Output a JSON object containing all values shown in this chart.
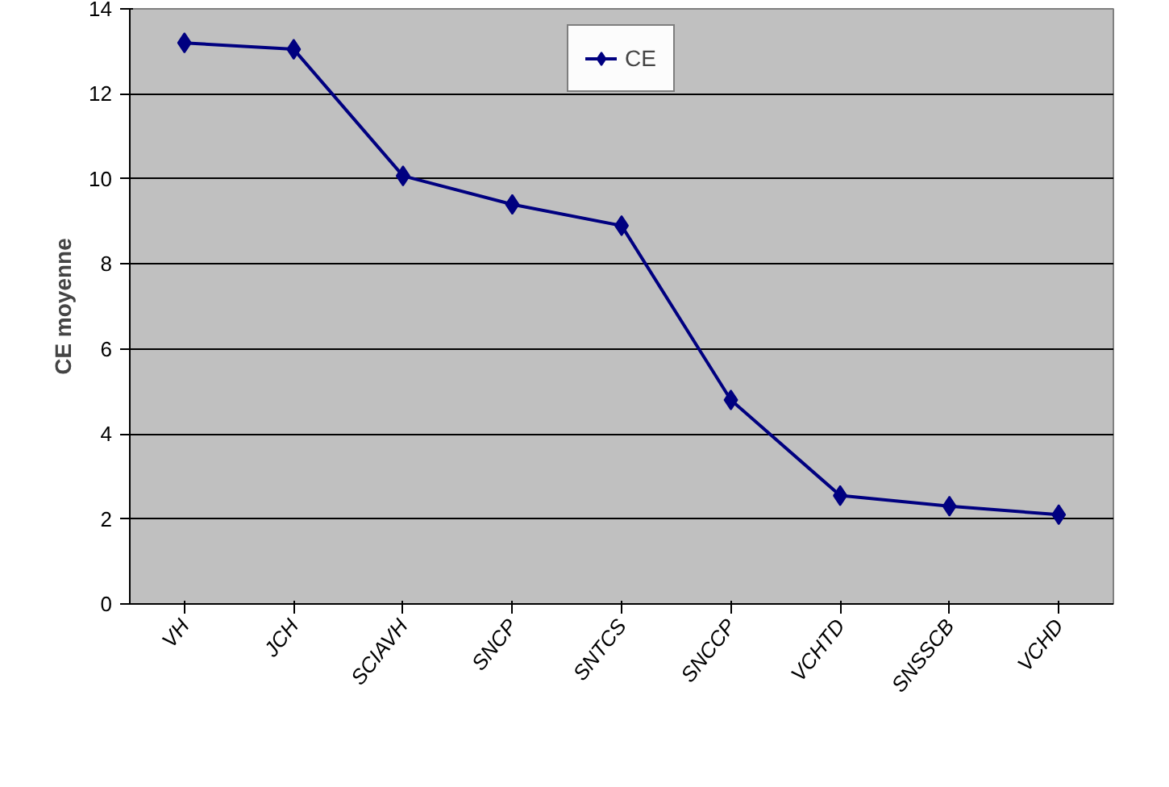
{
  "chart_data": {
    "type": "line",
    "ylabel": "CE moyenne",
    "categories": [
      "VH",
      "JCH",
      "SCIAVH",
      "SNCP",
      "SNTCS",
      "SNCCP",
      "VCHTD",
      "SNSSCB",
      "VCHD"
    ],
    "series": [
      {
        "name": "CE",
        "color": "#000080",
        "values": [
          13.2,
          13.05,
          10.07,
          9.4,
          8.9,
          4.8,
          2.55,
          2.3,
          2.1
        ]
      }
    ],
    "ylim": [
      0,
      14
    ],
    "yticks": [
      0,
      2,
      4,
      6,
      8,
      10,
      12,
      14
    ],
    "grid": "y",
    "legend": "top",
    "marker": "diamond",
    "line_style": "solid"
  }
}
